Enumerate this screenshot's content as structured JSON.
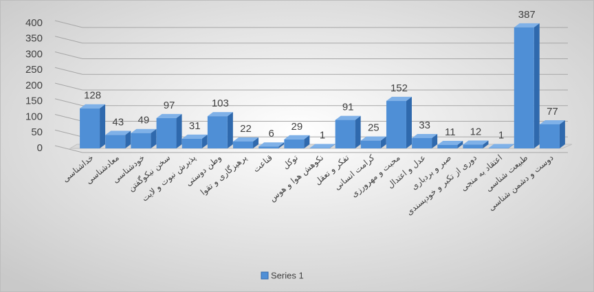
{
  "chart_data": {
    "type": "bar3d",
    "categories": [
      "خداشناسی",
      "معادشناسی",
      "خودشناسی",
      "سخن نیکوگفتن",
      "پذیرش نبوت و لایت",
      "وطن دوستی",
      "پرهیزگاری و تقوا",
      "قناعت",
      "توکل",
      "نکوهش هوا و هوس",
      "تفکر و تعقل",
      "کرامت انسانی",
      "محبت و مهرورزی",
      "عدل و اعتدال",
      "صبر و بردباری",
      "دوری از تکبر و خودپسندی",
      "اعتقاد به منجی",
      "طبیعت شناسی",
      "دوست و دشمن شناسی"
    ],
    "series": [
      {
        "name": "Series 1",
        "color": "#4f8fd6",
        "values": [
          128,
          43,
          49,
          97,
          31,
          103,
          22,
          6,
          29,
          1,
          91,
          25,
          152,
          33,
          11,
          12,
          1,
          387,
          77
        ]
      }
    ],
    "ylim": [
      0,
      400
    ],
    "yticks": [
      0,
      50,
      100,
      150,
      200,
      250,
      300,
      350,
      400
    ],
    "grid": true,
    "legend": "bottom"
  }
}
